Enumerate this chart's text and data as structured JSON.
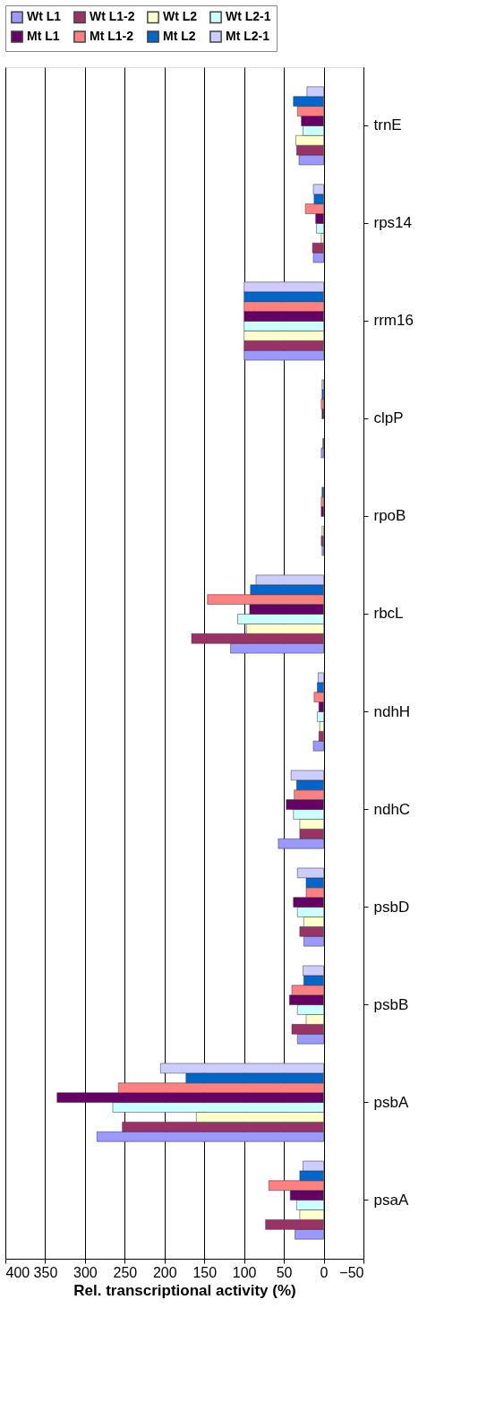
{
  "chart_data": {
    "type": "bar",
    "orientation": "horizontal",
    "xlabel": "Rel. transcriptional activity (%)",
    "categories": [
      "trnE",
      "rps14",
      "rrm16",
      "clpP",
      "rpoB",
      "rbcL",
      "ndhH",
      "ndhC",
      "psbD",
      "psbB",
      "psbA",
      "psaA"
    ],
    "series": [
      {
        "name": "Wt L1",
        "color": "#9999ff",
        "values": [
          31,
          13,
          100,
          3,
          2,
          117,
          13,
          57,
          25,
          33,
          285,
          36
        ]
      },
      {
        "name": "Wt L1-2",
        "color": "#993366",
        "values": [
          34,
          14,
          100,
          1,
          3,
          166,
          6,
          30,
          30,
          40,
          253,
          73
        ]
      },
      {
        "name": "Wt L2",
        "color": "#ffffcc",
        "values": [
          35,
          3,
          100,
          null,
          2,
          97,
          5,
          30,
          25,
          22,
          160,
          30
        ]
      },
      {
        "name": "Wt L2-1",
        "color": "#ccffff",
        "values": [
          26,
          9,
          100,
          null,
          null,
          108,
          8,
          38,
          33,
          33,
          265,
          34
        ]
      },
      {
        "name": "Mt L1",
        "color": "#660066",
        "values": [
          28,
          10,
          100,
          2,
          3,
          93,
          6,
          47,
          38,
          43,
          335,
          42
        ]
      },
      {
        "name": "Mt L1-2",
        "color": "#ff8080",
        "values": [
          33,
          23,
          100,
          3,
          3,
          146,
          12,
          37,
          22,
          40,
          258,
          69
        ]
      },
      {
        "name": "Mt L2",
        "color": "#0066cc",
        "values": [
          38,
          12,
          100,
          2,
          2,
          92,
          8,
          34,
          22,
          25,
          173,
          30
        ]
      },
      {
        "name": "Mt L2-1",
        "color": "#ccccff",
        "values": [
          21,
          13,
          100,
          2,
          null,
          85,
          7,
          41,
          33,
          26,
          205,
          26
        ]
      }
    ],
    "xlim": [
      400,
      -50
    ],
    "xticks": [
      400,
      350,
      300,
      250,
      200,
      150,
      100,
      50,
      0,
      -50
    ],
    "grid": "x",
    "legend": "top"
  }
}
